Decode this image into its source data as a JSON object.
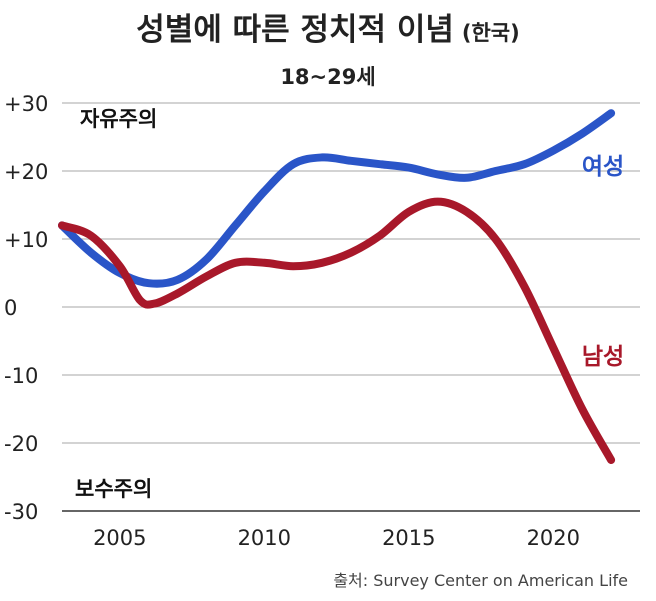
{
  "chart_data": {
    "type": "line",
    "title": "성별에 따른 정치적 이념",
    "title_suffix": "(한국)",
    "subtitle": "18~29세",
    "ylim": [
      -30,
      30
    ],
    "xlim": [
      2003,
      2023
    ],
    "y_ticks": [
      "+30",
      "+20",
      "+10",
      "0",
      "-10",
      "-20",
      "-30"
    ],
    "y_tick_values": [
      30,
      20,
      10,
      0,
      -10,
      -20,
      -30
    ],
    "x_ticks": [
      "2005",
      "2010",
      "2015",
      "2020"
    ],
    "x_tick_values": [
      2005,
      2010,
      2015,
      2020
    ],
    "grid": "horizontal",
    "top_annotation": "자유주의",
    "bottom_annotation": "보수주의",
    "series": [
      {
        "name": "여성",
        "color": "#2a55c8",
        "x": [
          2003.0,
          2004.0,
          2005.0,
          2006.0,
          2007.0,
          2008.0,
          2009.0,
          2010.0,
          2011.0,
          2012.0,
          2013.0,
          2014.0,
          2015.0,
          2016.0,
          2017.0,
          2018.0,
          2019.0,
          2020.0,
          2021.0,
          2022.0
        ],
        "values": [
          12,
          8,
          5,
          3.5,
          4,
          7,
          12,
          17,
          21,
          22,
          21.5,
          21,
          20.5,
          19.5,
          19,
          20,
          21,
          23,
          25.5,
          28.5
        ]
      },
      {
        "name": "남성",
        "color": "#a8182a",
        "x": [
          2003.0,
          2004.0,
          2005.0,
          2005.7,
          2006.2,
          2007.0,
          2008.0,
          2009.0,
          2010.0,
          2011.0,
          2012.0,
          2013.0,
          2014.0,
          2015.0,
          2016.0,
          2017.0,
          2018.0,
          2019.0,
          2020.0,
          2021.0,
          2022.0
        ],
        "values": [
          12,
          10.5,
          6,
          1,
          0.5,
          2,
          4.5,
          6.5,
          6.5,
          6,
          6.5,
          8,
          10.5,
          14,
          15.5,
          14,
          10,
          3,
          -6,
          -15,
          -22.5
        ]
      }
    ],
    "source": "출처: Survey Center on American Life"
  }
}
